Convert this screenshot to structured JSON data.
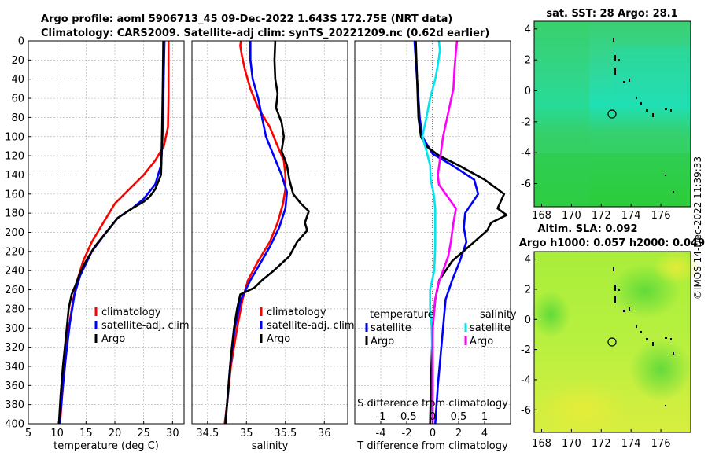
{
  "title_line1": "Argo profile: aoml 5906713_45 09-Dec-2022 1.643S 172.75E (NRT data)",
  "title_line2": "Climatology: CARS2009. Satellite-adj clim: synTS_20221209.nc (0.62d earlier)",
  "credit": "©IMOS 14-Dec-2022 11:39:33",
  "colors": {
    "climatology": "#ff0000",
    "satellite": "#0000ff",
    "argo": "#000000",
    "sat_salinity": "#00e5ee",
    "argo_salinity": "#ff00ff"
  },
  "chart_data": [
    {
      "id": "temperature",
      "type": "line",
      "xlabel": "temperature (deg C)",
      "ylabel": "",
      "xlim": [
        5,
        32
      ],
      "ylim": [
        400,
        0
      ],
      "xticks": [
        5,
        10,
        15,
        20,
        25,
        30
      ],
      "yticks": [
        0,
        20,
        40,
        60,
        80,
        100,
        120,
        140,
        160,
        180,
        200,
        220,
        240,
        260,
        280,
        300,
        320,
        340,
        360,
        380,
        400
      ],
      "grid": true,
      "legend": "right-lower",
      "legend_entries": [
        "climatology",
        "satellite-adj. clim",
        "Argo"
      ],
      "series": [
        {
          "name": "climatology",
          "color": "#ff0000",
          "points": [
            [
              29.3,
              0
            ],
            [
              29.3,
              20
            ],
            [
              29.3,
              60
            ],
            [
              29.2,
              90
            ],
            [
              28.5,
              110
            ],
            [
              27,
              125
            ],
            [
              25,
              140
            ],
            [
              22.5,
              155
            ],
            [
              20,
              170
            ],
            [
              18,
              190
            ],
            [
              16,
              210
            ],
            [
              14.5,
              230
            ],
            [
              13.5,
              250
            ],
            [
              12.8,
              270
            ],
            [
              12,
              300
            ],
            [
              11.5,
              330
            ],
            [
              11,
              360
            ],
            [
              10.5,
              400
            ]
          ]
        },
        {
          "name": "satellite-adj. clim",
          "color": "#0000ff",
          "points": [
            [
              28.6,
              0
            ],
            [
              28.5,
              30
            ],
            [
              28.4,
              60
            ],
            [
              28.3,
              90
            ],
            [
              28.2,
              110
            ],
            [
              28,
              130
            ],
            [
              27,
              150
            ],
            [
              25,
              165
            ],
            [
              23,
              175
            ],
            [
              20.5,
              185
            ],
            [
              18.5,
              200
            ],
            [
              16,
              220
            ],
            [
              14,
              245
            ],
            [
              13,
              265
            ],
            [
              12.2,
              295
            ],
            [
              11.5,
              330
            ],
            [
              11,
              360
            ],
            [
              10.4,
              400
            ]
          ]
        },
        {
          "name": "Argo",
          "color": "#000000",
          "points": [
            [
              28.4,
              0
            ],
            [
              28.3,
              50
            ],
            [
              28.2,
              90
            ],
            [
              28.1,
              120
            ],
            [
              28,
              140
            ],
            [
              27,
              155
            ],
            [
              26,
              163
            ],
            [
              25,
              168
            ],
            [
              23,
              175
            ],
            [
              20.5,
              185
            ],
            [
              18.5,
              200
            ],
            [
              16.5,
              215
            ],
            [
              15,
              230
            ],
            [
              14,
              242
            ],
            [
              13.2,
              255
            ],
            [
              12.5,
              265
            ],
            [
              12,
              280
            ],
            [
              11.5,
              310
            ],
            [
              11,
              340
            ],
            [
              10.6,
              370
            ],
            [
              10.3,
              400
            ]
          ]
        }
      ]
    },
    {
      "id": "salinity",
      "type": "line",
      "xlabel": "salinity",
      "ylabel": "",
      "xlim": [
        34.3,
        36.3
      ],
      "ylim": [
        400,
        0
      ],
      "xticks": [
        34.5,
        35,
        35.5,
        36
      ],
      "xticklabels": [
        "34.5",
        "35",
        "35.5",
        "36"
      ],
      "grid": true,
      "legend": "right-lower",
      "legend_entries": [
        "climatology",
        "satellite-adj. clim",
        "Argo"
      ],
      "series": [
        {
          "name": "climatology",
          "color": "#ff0000",
          "points": [
            [
              34.93,
              0
            ],
            [
              34.92,
              5
            ],
            [
              34.94,
              15
            ],
            [
              34.98,
              30
            ],
            [
              35.05,
              50
            ],
            [
              35.15,
              70
            ],
            [
              35.3,
              90
            ],
            [
              35.4,
              110
            ],
            [
              35.48,
              125
            ],
            [
              35.5,
              140
            ],
            [
              35.5,
              155
            ],
            [
              35.47,
              170
            ],
            [
              35.4,
              190
            ],
            [
              35.3,
              210
            ],
            [
              35.15,
              230
            ],
            [
              35.02,
              250
            ],
            [
              34.95,
              270
            ],
            [
              34.88,
              300
            ],
            [
              34.8,
              340
            ],
            [
              34.75,
              380
            ],
            [
              34.72,
              400
            ]
          ]
        },
        {
          "name": "satellite-adj. clim",
          "color": "#0000ff",
          "points": [
            [
              35.05,
              0
            ],
            [
              35.05,
              20
            ],
            [
              35.08,
              40
            ],
            [
              35.15,
              60
            ],
            [
              35.2,
              80
            ],
            [
              35.25,
              100
            ],
            [
              35.35,
              120
            ],
            [
              35.45,
              140
            ],
            [
              35.52,
              158
            ],
            [
              35.5,
              175
            ],
            [
              35.42,
              195
            ],
            [
              35.3,
              215
            ],
            [
              35.18,
              232
            ],
            [
              35.05,
              250
            ],
            [
              34.93,
              270
            ],
            [
              34.85,
              300
            ],
            [
              34.79,
              340
            ],
            [
              34.75,
              380
            ],
            [
              34.73,
              400
            ]
          ]
        },
        {
          "name": "Argo",
          "color": "#000000",
          "points": [
            [
              35.37,
              0
            ],
            [
              35.36,
              20
            ],
            [
              35.37,
              40
            ],
            [
              35.4,
              55
            ],
            [
              35.38,
              70
            ],
            [
              35.45,
              85
            ],
            [
              35.48,
              100
            ],
            [
              35.45,
              115
            ],
            [
              35.52,
              130
            ],
            [
              35.55,
              145
            ],
            [
              35.6,
              160
            ],
            [
              35.7,
              170
            ],
            [
              35.8,
              178
            ],
            [
              35.75,
              190
            ],
            [
              35.78,
              198
            ],
            [
              35.65,
              210
            ],
            [
              35.55,
              225
            ],
            [
              35.35,
              240
            ],
            [
              35.2,
              250
            ],
            [
              35.1,
              258
            ],
            [
              34.92,
              265
            ],
            [
              34.88,
              280
            ],
            [
              34.84,
              300
            ],
            [
              34.8,
              330
            ],
            [
              34.76,
              370
            ],
            [
              34.73,
              400
            ]
          ]
        }
      ]
    },
    {
      "id": "difference",
      "type": "line",
      "xlabel": "T difference from climatology",
      "xlabel_top": "S difference from climatology",
      "xlim": [
        -6,
        6
      ],
      "ylim": [
        400,
        0
      ],
      "xticks": [
        -4,
        -2,
        0,
        2,
        4
      ],
      "xticklabels": [
        "-4",
        "-2",
        "0",
        "2",
        "4"
      ],
      "s_xlim": [
        -1.5,
        1.5
      ],
      "s_xticks": [
        -1,
        -0.5,
        0,
        0.5,
        1
      ],
      "s_xticklabels": [
        "-1",
        "-0.5",
        "0",
        "0.5",
        "1"
      ],
      "grid": true,
      "legend": "lower",
      "legend_group_left": "temperature",
      "legend_group_right": "salinity",
      "legend_entries": [
        "satellite",
        "Argo",
        "satellite",
        "Argo"
      ],
      "series": [
        {
          "name": "satellite",
          "group": "temperature",
          "color": "#0000ff",
          "points": [
            [
              -1.4,
              0
            ],
            [
              -1.3,
              20
            ],
            [
              -1.2,
              40
            ],
            [
              -1.1,
              60
            ],
            [
              -1,
              80
            ],
            [
              -0.8,
              100
            ],
            [
              0,
              118
            ],
            [
              1.5,
              130
            ],
            [
              3.2,
              145
            ],
            [
              3.5,
              160
            ],
            [
              2.5,
              180
            ],
            [
              2.4,
              195
            ],
            [
              2.6,
              210
            ],
            [
              2.1,
              230
            ],
            [
              1.5,
              250
            ],
            [
              1,
              270
            ],
            [
              0.8,
              300
            ],
            [
              0.6,
              330
            ],
            [
              0.4,
              360
            ],
            [
              0.2,
              400
            ]
          ]
        },
        {
          "name": "Argo",
          "group": "temperature",
          "color": "#000000",
          "points": [
            [
              -1.3,
              0
            ],
            [
              -1.2,
              40
            ],
            [
              -1.1,
              80
            ],
            [
              -0.9,
              100
            ],
            [
              -0.5,
              110
            ],
            [
              0.5,
              120
            ],
            [
              2,
              130
            ],
            [
              4,
              145
            ],
            [
              5.5,
              160
            ],
            [
              5,
              175
            ],
            [
              5.7,
              182
            ],
            [
              4.5,
              190
            ],
            [
              4.2,
              198
            ],
            [
              3.2,
              210
            ],
            [
              1.5,
              230
            ],
            [
              0.5,
              250
            ],
            [
              0.2,
              270
            ],
            [
              0,
              300
            ],
            [
              -0.1,
              340
            ],
            [
              -0.2,
              400
            ]
          ]
        },
        {
          "name": "satellite",
          "group": "salinity",
          "color": "#00e5ee",
          "points": [
            [
              0.12,
              0
            ],
            [
              0.14,
              10
            ],
            [
              0.1,
              25
            ],
            [
              0.05,
              40
            ],
            [
              -0.05,
              60
            ],
            [
              -0.12,
              80
            ],
            [
              -0.2,
              100
            ],
            [
              -0.12,
              115
            ],
            [
              -0.05,
              130
            ],
            [
              -0.04,
              145
            ],
            [
              0.02,
              160
            ],
            [
              0.05,
              175
            ],
            [
              0.05,
              195
            ],
            [
              0.05,
              215
            ],
            [
              0.03,
              240
            ],
            [
              -0.05,
              260
            ],
            [
              -0.05,
              280
            ],
            [
              -0.02,
              300
            ],
            [
              0,
              340
            ],
            [
              0,
              400
            ]
          ]
        },
        {
          "name": "Argo",
          "group": "salinity",
          "color": "#ff00ff",
          "points": [
            [
              0.47,
              0
            ],
            [
              0.45,
              10
            ],
            [
              0.42,
              30
            ],
            [
              0.4,
              50
            ],
            [
              0.32,
              70
            ],
            [
              0.2,
              100
            ],
            [
              0.15,
              120
            ],
            [
              0.1,
              140
            ],
            [
              0.12,
              150
            ],
            [
              0.25,
              160
            ],
            [
              0.45,
              175
            ],
            [
              0.4,
              190
            ],
            [
              0.35,
              210
            ],
            [
              0.3,
              225
            ],
            [
              0.2,
              240
            ],
            [
              0.1,
              255
            ],
            [
              0.05,
              270
            ],
            [
              0,
              300
            ],
            [
              0,
              340
            ],
            [
              0,
              400
            ]
          ]
        }
      ]
    }
  ],
  "maps": [
    {
      "id": "sst",
      "title": "sat. SST: 28 Argo: 28.1",
      "xticks": [
        "168",
        "170",
        "172",
        "174",
        "176"
      ],
      "yticks": [
        "4",
        "2",
        "0",
        "-2",
        "-4",
        "-6"
      ],
      "xlim": [
        167.5,
        178
      ],
      "ylim": [
        -7.5,
        4.5
      ],
      "marker": [
        172.75,
        -1.643
      ]
    },
    {
      "id": "sla",
      "title_line1": "Altim. SLA: 0.092",
      "title_line2": "Argo h1000: 0.057 h2000: 0.049",
      "xticks": [
        "168",
        "170",
        "172",
        "174",
        "176"
      ],
      "yticks": [
        "4",
        "2",
        "0",
        "-2",
        "-4",
        "-6"
      ],
      "xlim": [
        167.5,
        178
      ],
      "ylim": [
        -7.5,
        4.5
      ],
      "marker": [
        172.75,
        -1.643
      ]
    }
  ]
}
